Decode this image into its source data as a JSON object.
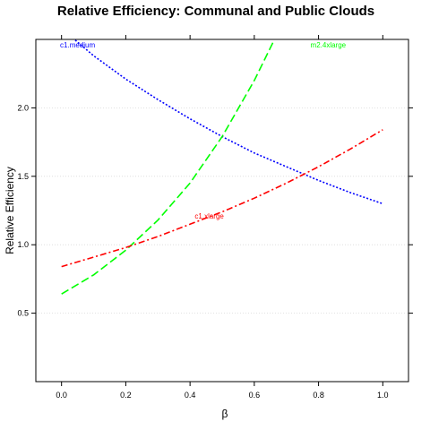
{
  "chart_data": {
    "type": "line",
    "title": "Relative Efficiency: Communal and Public Clouds",
    "xlabel": "β",
    "ylabel": "Relative Efficiency",
    "xlim": [
      -0.08,
      1.08
    ],
    "ylim": [
      0.0,
      2.5
    ],
    "x_ticks": [
      "0.0",
      "0.2",
      "0.4",
      "0.6",
      "0.8",
      "1.0"
    ],
    "y_ticks": [
      "0.5",
      "1.0",
      "1.5",
      "2.0"
    ],
    "grid": "horizontal dotted",
    "series": [
      {
        "name": "c1.medium",
        "color": "#0000ff",
        "dash": "dotted",
        "x": [
          0.0,
          0.1,
          0.2,
          0.3,
          0.4,
          0.5,
          0.6,
          0.7,
          0.8,
          0.9,
          1.0
        ],
        "y": [
          2.58,
          2.38,
          2.21,
          2.06,
          1.92,
          1.79,
          1.67,
          1.57,
          1.47,
          1.38,
          1.3
        ],
        "label_pos": [
          0.05,
          2.44
        ]
      },
      {
        "name": "m2.4xlarge",
        "color": "#00ff00",
        "dash": "dashed",
        "x": [
          0.0,
          0.1,
          0.2,
          0.3,
          0.4,
          0.5,
          0.6,
          0.667
        ],
        "y": [
          0.64,
          0.78,
          0.96,
          1.18,
          1.45,
          1.79,
          2.2,
          2.52
        ],
        "label_pos": [
          0.83,
          2.44
        ]
      },
      {
        "name": "c1.xlarge",
        "color": "#ff0000",
        "dash": "dashdot",
        "x": [
          0.0,
          0.1,
          0.2,
          0.3,
          0.4,
          0.5,
          0.6,
          0.7,
          0.8,
          0.9,
          1.0
        ],
        "y": [
          0.84,
          0.91,
          0.98,
          1.06,
          1.15,
          1.24,
          1.34,
          1.45,
          1.57,
          1.7,
          1.84
        ],
        "label_pos": [
          0.46,
          1.19
        ]
      }
    ]
  }
}
